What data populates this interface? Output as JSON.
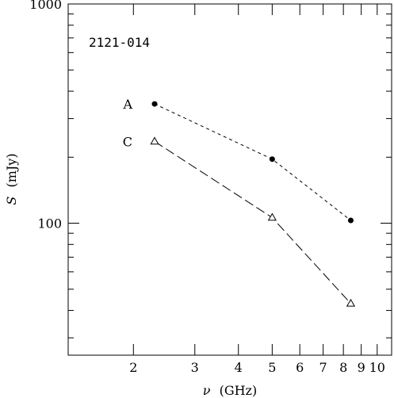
{
  "chart_data": {
    "type": "line",
    "title": "",
    "annotation": "2121-014",
    "xlabel_symbol": "ν",
    "xlabel_unit": "(GHz)",
    "ylabel_symbol": "S",
    "ylabel_unit": "(mJy)",
    "x_scale": "log",
    "y_scale": "log",
    "xlim": [
      1.3,
      11.0
    ],
    "ylim": [
      25,
      1000
    ],
    "x_ticks": [
      2,
      3,
      4,
      5,
      6,
      7,
      8,
      9,
      10
    ],
    "x_tick_labels": [
      "2",
      "3",
      "4",
      "5",
      "6",
      "7",
      "8",
      "9",
      "10"
    ],
    "y_ticks": [
      100,
      1000
    ],
    "y_tick_labels": [
      "100",
      "1000"
    ],
    "grid": false,
    "series": [
      {
        "name": "A",
        "marker": "filled-circle",
        "linestyle": "short-dash",
        "x": [
          2.3,
          5.0,
          8.4
        ],
        "y": [
          350,
          196,
          103
        ]
      },
      {
        "name": "C",
        "marker": "open-triangle",
        "linestyle": "long-dash",
        "x": [
          2.3,
          5.0,
          8.4
        ],
        "y": [
          236,
          106,
          43
        ]
      }
    ]
  }
}
